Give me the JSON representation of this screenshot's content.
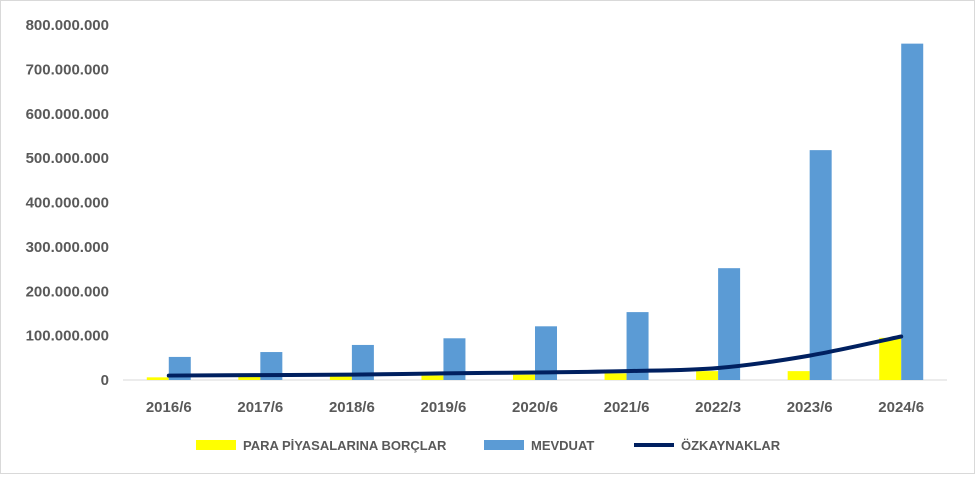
{
  "chart_data": {
    "type": "bar",
    "categories": [
      "2016/6",
      "2017/6",
      "2018/6",
      "2019/6",
      "2020/6",
      "2021/6",
      "2022/3",
      "2023/6",
      "2024/6"
    ],
    "series": [
      {
        "name": "PARA PİYASALARINA BORÇLAR",
        "type": "bar",
        "color": "#ffff00",
        "values": [
          6000000,
          7000000,
          8000000,
          10000000,
          12000000,
          15000000,
          20000000,
          20000000,
          95000000
        ]
      },
      {
        "name": "MEVDUAT",
        "type": "bar",
        "color": "#5b9bd5",
        "values": [
          52000000,
          63000000,
          79000000,
          94000000,
          121000000,
          153000000,
          252000000,
          518000000,
          758000000
        ]
      },
      {
        "name": "ÖZKAYNAKLAR",
        "type": "line",
        "color": "#002060",
        "values": [
          10000000,
          11000000,
          12000000,
          15000000,
          17000000,
          20000000,
          27000000,
          55000000,
          98000000
        ]
      }
    ],
    "y_ticks": [
      "0",
      "100.000.000",
      "200.000.000",
      "300.000.000",
      "400.000.000",
      "500.000.000",
      "600.000.000",
      "700.000.000",
      "800.000.000"
    ],
    "ylim": [
      0,
      800000000
    ],
    "grid": false,
    "legend_position": "bottom"
  }
}
